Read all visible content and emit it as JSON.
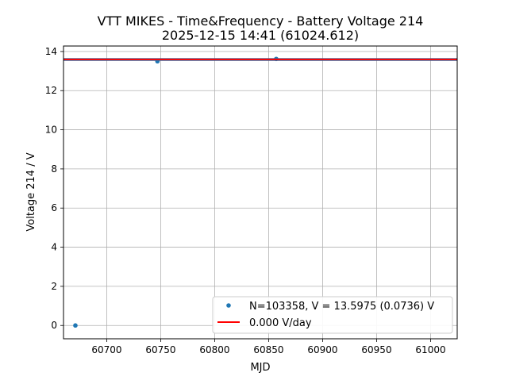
{
  "chart_data": {
    "type": "scatter",
    "title_line1": "VTT MIKES - Time&Frequency - Battery Voltage 214",
    "title_line2": "2025-12-15 14:41 (61024.612)",
    "xlabel": "MJD",
    "ylabel": "Voltage 214 / V",
    "xlim": [
      60660,
      61024.612
    ],
    "ylim": [
      -0.68,
      14.28
    ],
    "x_ticks": [
      60700,
      60750,
      60800,
      60850,
      60900,
      60950,
      61000
    ],
    "y_ticks": [
      0,
      2,
      4,
      6,
      8,
      10,
      12,
      14
    ],
    "grid": true,
    "legend_position": "lower-right",
    "series": [
      {
        "name": "N=103358, V = 13.5975 (0.0736) V",
        "kind": "points",
        "color": "#1f77b4",
        "band": {
          "x_start": 60660,
          "x_end": 61024.612,
          "y_low": 13.52,
          "y_high": 13.66
        },
        "points": [
          {
            "x": 60671,
            "y": 0.0
          },
          {
            "x": 60747,
            "y": 13.5
          },
          {
            "x": 60857,
            "y": 13.62
          }
        ]
      },
      {
        "name": "0.000 V/day",
        "kind": "line",
        "color": "#ff0000",
        "x": [
          60660,
          61024.612
        ],
        "y": [
          13.5975,
          13.5975
        ]
      }
    ]
  }
}
